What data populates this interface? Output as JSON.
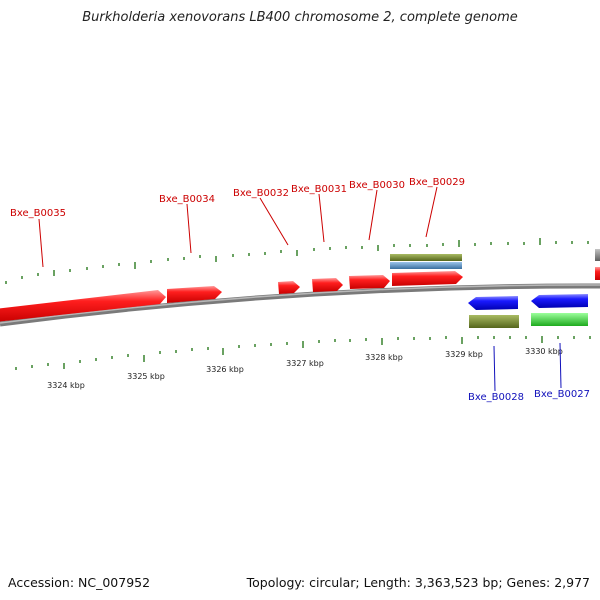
{
  "title": "Burkholderia xenovorans LB400 chromosome 2, complete genome",
  "footer": {
    "accession": "Accession: NC_007952",
    "stats": "Topology: circular; Length: 3,363,523 bp; Genes: 2,977"
  },
  "colors": {
    "forward_gene": "#ee1111",
    "reverse_gene": "#1515dd",
    "forward_label": "#cc0000",
    "reverse_label": "#1111bb",
    "tick": "#2a7a1f",
    "backbone": "#777777",
    "olive": "#6b7d2c",
    "steel_blue": "#4a7fb0",
    "green": "#33cc33"
  },
  "kbp_labels": [
    "3324 kbp",
    "3325 kbp",
    "3326 kbp",
    "3327 kbp",
    "3328 kbp",
    "3329 kbp",
    "3330 kbp"
  ],
  "forward_genes": [
    "Bxe_B0035",
    "Bxe_B0034",
    "Bxe_B0032",
    "Bxe_B0031",
    "Bxe_B0030",
    "Bxe_B0029"
  ],
  "reverse_genes": [
    "Bxe_B0028",
    "Bxe_B0027"
  ]
}
